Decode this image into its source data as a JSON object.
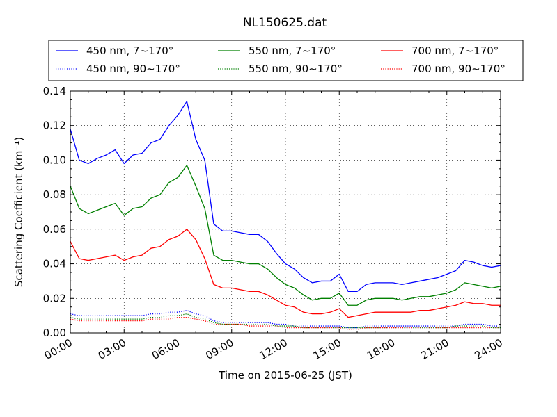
{
  "chart_data": {
    "type": "line",
    "title": "NL150625.dat",
    "xlabel": "Time on 2015-06-25 (JST)",
    "ylabel": "Scattering Coefficient (km⁻¹)",
    "xlim": [
      0,
      24
    ],
    "ylim": [
      0,
      0.14
    ],
    "x_ticks": [
      0,
      3,
      6,
      9,
      12,
      15,
      18,
      21,
      24
    ],
    "x_tick_labels": [
      "00:00",
      "03:00",
      "06:00",
      "09:00",
      "12:00",
      "15:00",
      "18:00",
      "21:00",
      "24:00"
    ],
    "y_ticks": [
      0,
      0.02,
      0.04,
      0.06,
      0.08,
      0.1,
      0.12,
      0.14
    ],
    "y_tick_labels": [
      "0.00",
      "0.02",
      "0.04",
      "0.06",
      "0.08",
      "0.10",
      "0.12",
      "0.14"
    ],
    "grid": true,
    "legend_position": "top (above plot)",
    "x": [
      0,
      0.5,
      1,
      1.5,
      2,
      2.5,
      3,
      3.5,
      4,
      4.5,
      5,
      5.5,
      6,
      6.5,
      7,
      7.5,
      8,
      8.5,
      9,
      9.5,
      10,
      10.5,
      11,
      11.5,
      12,
      12.5,
      13,
      13.5,
      14,
      14.5,
      15,
      15.5,
      16,
      16.5,
      17,
      17.5,
      18,
      18.5,
      19,
      19.5,
      20,
      20.5,
      21,
      21.5,
      22,
      22.5,
      23,
      23.5,
      24
    ],
    "series": [
      {
        "name": "450 nm, 7∼170°",
        "color": "#0000ff",
        "style": "solid",
        "values": [
          0.118,
          0.1,
          0.098,
          0.101,
          0.103,
          0.106,
          0.098,
          0.103,
          0.104,
          0.11,
          0.112,
          0.12,
          0.126,
          0.134,
          0.112,
          0.1,
          0.063,
          0.059,
          0.059,
          0.058,
          0.057,
          0.057,
          0.053,
          0.046,
          0.04,
          0.037,
          0.032,
          0.029,
          0.03,
          0.03,
          0.034,
          0.024,
          0.024,
          0.028,
          0.029,
          0.029,
          0.029,
          0.028,
          0.029,
          0.03,
          0.031,
          0.032,
          0.034,
          0.036,
          0.042,
          0.041,
          0.039,
          0.038,
          0.039
        ]
      },
      {
        "name": "550 nm, 7∼170°",
        "color": "#008000",
        "style": "solid",
        "values": [
          0.085,
          0.072,
          0.069,
          0.071,
          0.073,
          0.075,
          0.068,
          0.072,
          0.073,
          0.078,
          0.08,
          0.087,
          0.09,
          0.097,
          0.085,
          0.072,
          0.045,
          0.042,
          0.042,
          0.041,
          0.04,
          0.04,
          0.037,
          0.032,
          0.028,
          0.026,
          0.022,
          0.019,
          0.02,
          0.02,
          0.023,
          0.016,
          0.016,
          0.019,
          0.02,
          0.02,
          0.02,
          0.019,
          0.02,
          0.021,
          0.021,
          0.022,
          0.023,
          0.025,
          0.029,
          0.028,
          0.027,
          0.026,
          0.027
        ]
      },
      {
        "name": "700 nm, 7∼170°",
        "color": "#ff0000",
        "style": "solid",
        "values": [
          0.053,
          0.043,
          0.042,
          0.043,
          0.044,
          0.045,
          0.042,
          0.044,
          0.045,
          0.049,
          0.05,
          0.054,
          0.056,
          0.06,
          0.054,
          0.043,
          0.028,
          0.026,
          0.026,
          0.025,
          0.024,
          0.024,
          0.022,
          0.019,
          0.016,
          0.015,
          0.012,
          0.011,
          0.011,
          0.012,
          0.014,
          0.009,
          0.01,
          0.011,
          0.012,
          0.012,
          0.012,
          0.012,
          0.012,
          0.013,
          0.013,
          0.014,
          0.015,
          0.016,
          0.018,
          0.017,
          0.017,
          0.016,
          0.016
        ]
      },
      {
        "name": "450 nm, 90∼170°",
        "color": "#0000ff",
        "style": "dotted",
        "values": [
          0.011,
          0.01,
          0.01,
          0.01,
          0.01,
          0.01,
          0.01,
          0.01,
          0.01,
          0.011,
          0.011,
          0.012,
          0.012,
          0.013,
          0.011,
          0.01,
          0.007,
          0.006,
          0.006,
          0.006,
          0.006,
          0.006,
          0.006,
          0.005,
          0.005,
          0.004,
          0.004,
          0.004,
          0.004,
          0.004,
          0.004,
          0.003,
          0.003,
          0.004,
          0.004,
          0.004,
          0.004,
          0.004,
          0.004,
          0.004,
          0.004,
          0.004,
          0.004,
          0.004,
          0.005,
          0.005,
          0.005,
          0.004,
          0.004
        ]
      },
      {
        "name": "550 nm, 90∼170°",
        "color": "#008000",
        "style": "dotted",
        "values": [
          0.009,
          0.008,
          0.008,
          0.008,
          0.008,
          0.008,
          0.008,
          0.008,
          0.008,
          0.009,
          0.009,
          0.01,
          0.01,
          0.011,
          0.009,
          0.008,
          0.006,
          0.005,
          0.005,
          0.005,
          0.005,
          0.005,
          0.005,
          0.004,
          0.004,
          0.004,
          0.003,
          0.003,
          0.003,
          0.003,
          0.003,
          0.003,
          0.003,
          0.003,
          0.003,
          0.003,
          0.003,
          0.003,
          0.003,
          0.003,
          0.003,
          0.003,
          0.003,
          0.004,
          0.004,
          0.004,
          0.004,
          0.003,
          0.003
        ]
      },
      {
        "name": "700 nm, 90∼170°",
        "color": "#ff0000",
        "style": "dotted",
        "values": [
          0.008,
          0.007,
          0.007,
          0.007,
          0.007,
          0.007,
          0.007,
          0.007,
          0.007,
          0.008,
          0.008,
          0.008,
          0.009,
          0.009,
          0.008,
          0.007,
          0.005,
          0.005,
          0.005,
          0.005,
          0.004,
          0.004,
          0.004,
          0.004,
          0.003,
          0.003,
          0.003,
          0.003,
          0.003,
          0.003,
          0.003,
          0.002,
          0.002,
          0.003,
          0.003,
          0.003,
          0.003,
          0.003,
          0.003,
          0.003,
          0.003,
          0.003,
          0.003,
          0.003,
          0.003,
          0.003,
          0.003,
          0.003,
          0.003
        ]
      }
    ]
  }
}
